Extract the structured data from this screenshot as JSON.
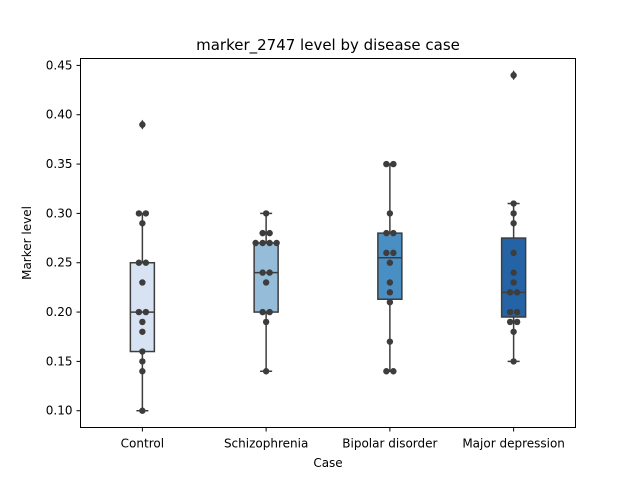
{
  "chart_data": {
    "type": "box",
    "title": "marker_2747 level by disease case",
    "xlabel": "Case",
    "ylabel": "Marker level",
    "categories": [
      "Control",
      "Schizophrenia",
      "Bipolar disorder",
      "Major depression"
    ],
    "ylim": [
      0.083,
      0.457
    ],
    "yticks": [
      0.1,
      0.15,
      0.2,
      0.25,
      0.3,
      0.35,
      0.4,
      0.45
    ],
    "ytick_labels": [
      "0.10",
      "0.15",
      "0.20",
      "0.25",
      "0.30",
      "0.35",
      "0.40",
      "0.45"
    ],
    "grid": false,
    "colors": [
      "#d7e3f2",
      "#95bdd9",
      "#4a8fc3",
      "#2464a6"
    ],
    "boxes": [
      {
        "q1": 0.16,
        "median": 0.2,
        "q3": 0.25,
        "whisker_low": 0.1,
        "whisker_high": 0.3,
        "outliers": [
          0.39
        ]
      },
      {
        "q1": 0.2,
        "median": 0.24,
        "q3": 0.27,
        "whisker_low": 0.14,
        "whisker_high": 0.3,
        "outliers": []
      },
      {
        "q1": 0.213,
        "median": 0.255,
        "q3": 0.28,
        "whisker_low": 0.14,
        "whisker_high": 0.35,
        "outliers": []
      },
      {
        "q1": 0.195,
        "median": 0.22,
        "q3": 0.275,
        "whisker_low": 0.15,
        "whisker_high": 0.31,
        "outliers": [
          0.44
        ]
      }
    ],
    "points": [
      [
        0.1,
        0.14,
        0.15,
        0.16,
        0.18,
        0.19,
        0.2,
        0.2,
        0.23,
        0.25,
        0.25,
        0.29,
        0.3,
        0.3,
        0.39
      ],
      [
        0.14,
        0.19,
        0.2,
        0.2,
        0.23,
        0.24,
        0.24,
        0.27,
        0.27,
        0.27,
        0.27,
        0.28,
        0.28,
        0.3
      ],
      [
        0.14,
        0.14,
        0.17,
        0.21,
        0.22,
        0.23,
        0.25,
        0.26,
        0.26,
        0.28,
        0.28,
        0.3,
        0.35,
        0.35
      ],
      [
        0.15,
        0.18,
        0.19,
        0.19,
        0.2,
        0.2,
        0.22,
        0.22,
        0.23,
        0.24,
        0.26,
        0.29,
        0.3,
        0.31,
        0.44
      ]
    ]
  }
}
